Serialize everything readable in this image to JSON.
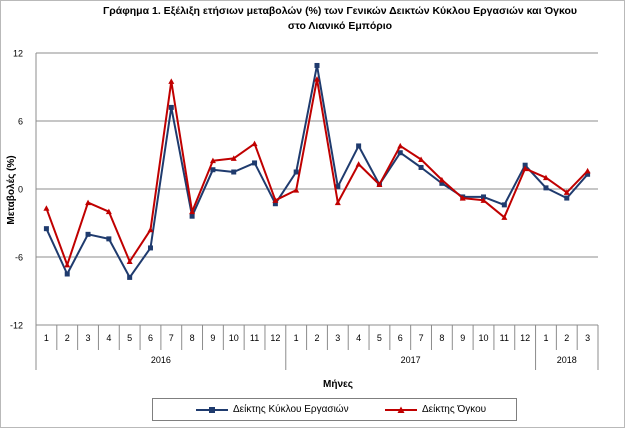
{
  "chart_data": {
    "type": "line",
    "title": "Γράφημα 1. Εξέλιξη ετήσιων μεταβολών (%) των Γενικών Δεικτών Κύκλου Εργασιών και Όγκου",
    "subtitle": "στο Λιανικό Εμπόριο",
    "xlabel": "Μήνες",
    "ylabel": "Μεταβολές (%)",
    "ylim": [
      -12,
      12
    ],
    "yticks": [
      -12,
      -6,
      0,
      6,
      12
    ],
    "grid": "horizontal",
    "legend": "bottom",
    "categories": [
      "1",
      "2",
      "3",
      "4",
      "5",
      "6",
      "7",
      "8",
      "9",
      "10",
      "11",
      "12",
      "1",
      "2",
      "3",
      "4",
      "5",
      "6",
      "7",
      "8",
      "9",
      "10",
      "11",
      "12",
      "1",
      "2",
      "3"
    ],
    "year_groups": [
      {
        "label": "2016",
        "count": 12
      },
      {
        "label": "2017",
        "count": 12
      },
      {
        "label": "2018",
        "count": 3
      }
    ],
    "series": [
      {
        "name": "Δείκτης Κύκλου Εργασιών",
        "color": "#1f3b6e",
        "marker": "square",
        "values": [
          -3.5,
          -7.5,
          -4,
          -4.4,
          -7.8,
          -5.2,
          7.2,
          -2.4,
          1.7,
          1.5,
          2.3,
          -1.3,
          1.5,
          10.9,
          0.2,
          3.8,
          0.4,
          3.2,
          1.9,
          0.5,
          -0.7,
          -0.7,
          -1.4,
          2.1,
          0.1,
          -0.8,
          1.3
        ]
      },
      {
        "name": "Δείκτης Όγκου",
        "color": "#c00000",
        "marker": "triangle",
        "values": [
          -1.7,
          -6.7,
          -1.2,
          -2,
          -6.4,
          -3.6,
          9.5,
          -2,
          2.5,
          2.7,
          4,
          -1,
          -0.1,
          9.7,
          -1.2,
          2.2,
          0.4,
          3.8,
          2.6,
          0.8,
          -0.8,
          -1,
          -2.5,
          1.8,
          1,
          -0.3,
          1.6
        ]
      }
    ]
  }
}
